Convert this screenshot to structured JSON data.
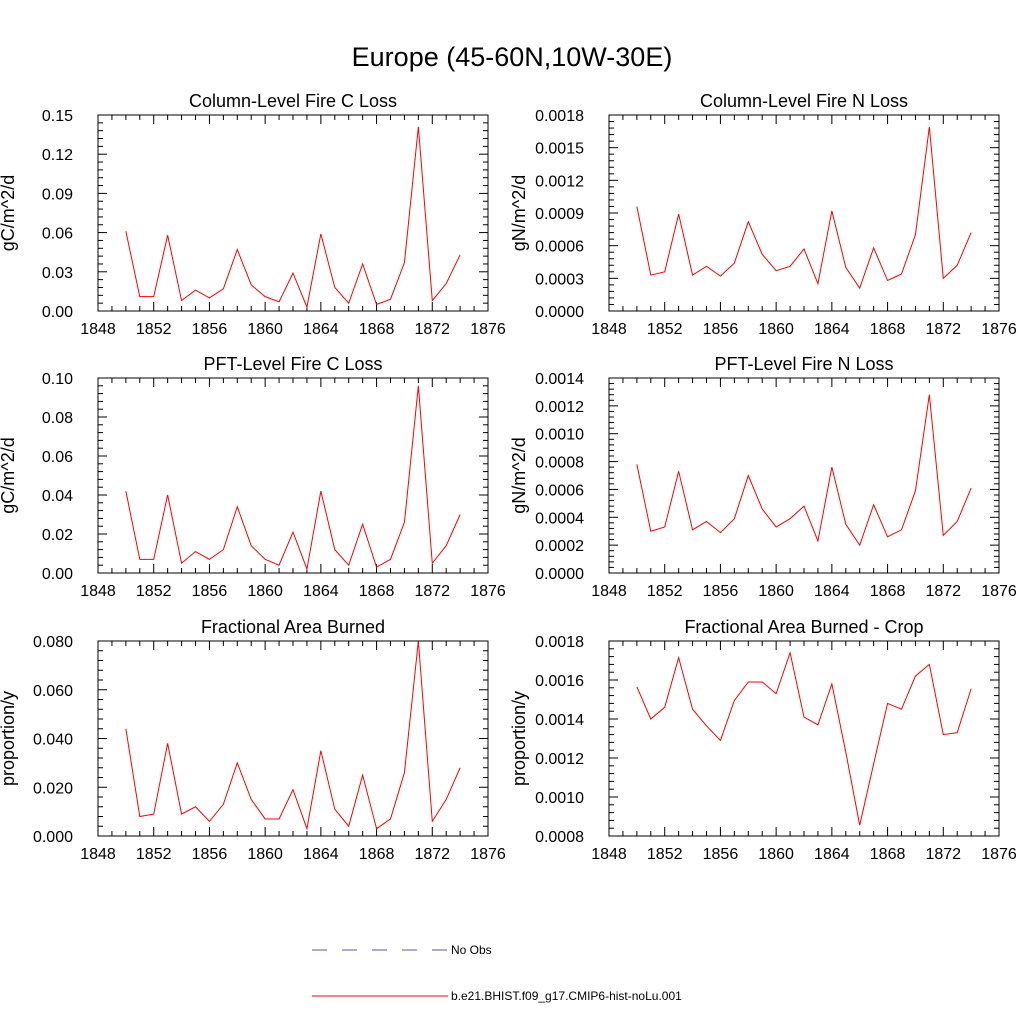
{
  "title": "Europe (45-60N,10W-30E)",
  "colors": {
    "model": "#ff0000",
    "obs": "#5a5aa0",
    "axis": "#000000"
  },
  "legend": {
    "obs_label": "No Obs",
    "model_label": "b.e21.BHIST.f09_g17.CMIP6-hist-noLu.001"
  },
  "chart_data": [
    {
      "type": "line",
      "title": "Column-Level Fire C Loss",
      "ylabel": "gC/m^2/d",
      "xlim": [
        1848,
        1876
      ],
      "ylim": [
        0,
        0.15
      ],
      "xticks": [
        "1848",
        "1852",
        "1856",
        "1860",
        "1864",
        "1868",
        "1872",
        "1876"
      ],
      "yticks": [
        "0.00",
        "0.03",
        "0.06",
        "0.09",
        "0.12",
        "0.15"
      ],
      "x": [
        1850,
        1851,
        1852,
        1853,
        1854,
        1855,
        1856,
        1857,
        1858,
        1859,
        1860,
        1861,
        1862,
        1863,
        1864,
        1865,
        1866,
        1867,
        1868,
        1869,
        1870,
        1871,
        1872,
        1873,
        1874
      ],
      "series": [
        {
          "values": [
            0.061,
            0.011,
            0.011,
            0.058,
            0.008,
            0.016,
            0.01,
            0.017,
            0.047,
            0.02,
            0.011,
            0.007,
            0.029,
            0.003,
            0.059,
            0.018,
            0.006,
            0.036,
            0.005,
            0.009,
            0.037,
            0.141,
            0.008,
            0.021,
            0.043
          ]
        }
      ]
    },
    {
      "type": "line",
      "title": "Column-Level Fire N Loss",
      "ylabel": "gN/m^2/d",
      "xlim": [
        1848,
        1876
      ],
      "ylim": [
        0,
        0.0018
      ],
      "xticks": [
        "1848",
        "1852",
        "1856",
        "1860",
        "1864",
        "1868",
        "1872",
        "1876"
      ],
      "yticks": [
        "0.0000",
        "0.0003",
        "0.0006",
        "0.0009",
        "0.0012",
        "0.0015",
        "0.0018"
      ],
      "x": [
        1850,
        1851,
        1852,
        1853,
        1854,
        1855,
        1856,
        1857,
        1858,
        1859,
        1860,
        1861,
        1862,
        1863,
        1864,
        1865,
        1866,
        1867,
        1868,
        1869,
        1870,
        1871,
        1872,
        1873,
        1874
      ],
      "series": [
        {
          "values": [
            0.00096,
            0.00033,
            0.00036,
            0.00089,
            0.00033,
            0.00041,
            0.00032,
            0.00044,
            0.00082,
            0.00052,
            0.00037,
            0.00041,
            0.00057,
            0.00025,
            0.00092,
            0.0004,
            0.00021,
            0.00058,
            0.00028,
            0.00034,
            0.0007,
            0.00169,
            0.0003,
            0.00042,
            0.00072
          ]
        }
      ]
    },
    {
      "type": "line",
      "title": "PFT-Level Fire C Loss",
      "ylabel": "gC/m^2/d",
      "xlim": [
        1848,
        1876
      ],
      "ylim": [
        0,
        0.1
      ],
      "xticks": [
        "1848",
        "1852",
        "1856",
        "1860",
        "1864",
        "1868",
        "1872",
        "1876"
      ],
      "yticks": [
        "0.00",
        "0.02",
        "0.04",
        "0.06",
        "0.08",
        "0.10"
      ],
      "x": [
        1850,
        1851,
        1852,
        1853,
        1854,
        1855,
        1856,
        1857,
        1858,
        1859,
        1860,
        1861,
        1862,
        1863,
        1864,
        1865,
        1866,
        1867,
        1868,
        1869,
        1870,
        1871,
        1872,
        1873,
        1874
      ],
      "series": [
        {
          "values": [
            0.042,
            0.007,
            0.007,
            0.04,
            0.005,
            0.011,
            0.007,
            0.012,
            0.034,
            0.014,
            0.007,
            0.004,
            0.021,
            0.002,
            0.042,
            0.012,
            0.004,
            0.025,
            0.003,
            0.007,
            0.026,
            0.096,
            0.005,
            0.014,
            0.03
          ]
        }
      ]
    },
    {
      "type": "line",
      "title": "PFT-Level Fire N Loss",
      "ylabel": "gN/m^2/d",
      "xlim": [
        1848,
        1876
      ],
      "ylim": [
        0,
        0.0014
      ],
      "xticks": [
        "1848",
        "1852",
        "1856",
        "1860",
        "1864",
        "1868",
        "1872",
        "1876"
      ],
      "yticks": [
        "0.0000",
        "0.0002",
        "0.0004",
        "0.0006",
        "0.0008",
        "0.0010",
        "0.0012",
        "0.0014"
      ],
      "x": [
        1850,
        1851,
        1852,
        1853,
        1854,
        1855,
        1856,
        1857,
        1858,
        1859,
        1860,
        1861,
        1862,
        1863,
        1864,
        1865,
        1866,
        1867,
        1868,
        1869,
        1870,
        1871,
        1872,
        1873,
        1874
      ],
      "series": [
        {
          "values": [
            0.00078,
            0.0003,
            0.00033,
            0.00073,
            0.00031,
            0.00037,
            0.00029,
            0.00039,
            0.0007,
            0.00046,
            0.00033,
            0.00039,
            0.00048,
            0.00023,
            0.00076,
            0.00035,
            0.0002,
            0.00049,
            0.00026,
            0.00031,
            0.00059,
            0.00128,
            0.00027,
            0.00037,
            0.00061
          ]
        }
      ]
    },
    {
      "type": "line",
      "title": "Fractional Area Burned",
      "ylabel": "proportion/y",
      "xlim": [
        1848,
        1876
      ],
      "ylim": [
        0,
        0.08
      ],
      "xticks": [
        "1848",
        "1852",
        "1856",
        "1860",
        "1864",
        "1868",
        "1872",
        "1876"
      ],
      "yticks": [
        "0.000",
        "0.020",
        "0.040",
        "0.060",
        "0.080"
      ],
      "x": [
        1850,
        1851,
        1852,
        1853,
        1854,
        1855,
        1856,
        1857,
        1858,
        1859,
        1860,
        1861,
        1862,
        1863,
        1864,
        1865,
        1866,
        1867,
        1868,
        1869,
        1870,
        1871,
        1872,
        1873,
        1874
      ],
      "series": [
        {
          "values": [
            0.044,
            0.008,
            0.009,
            0.038,
            0.009,
            0.012,
            0.006,
            0.013,
            0.03,
            0.015,
            0.007,
            0.007,
            0.019,
            0.003,
            0.035,
            0.011,
            0.004,
            0.025,
            0.003,
            0.007,
            0.026,
            0.08,
            0.006,
            0.015,
            0.028
          ]
        }
      ]
    },
    {
      "type": "line",
      "title": "Fractional Area Burned - Crop",
      "ylabel": "proportion/y",
      "xlim": [
        1848,
        1876
      ],
      "ylim": [
        0.0008,
        0.0018
      ],
      "xticks": [
        "1848",
        "1852",
        "1856",
        "1860",
        "1864",
        "1868",
        "1872",
        "1876"
      ],
      "yticks": [
        "0.0008",
        "0.0010",
        "0.0012",
        "0.0014",
        "0.0016",
        "0.0018"
      ],
      "x": [
        1850,
        1851,
        1852,
        1853,
        1854,
        1855,
        1856,
        1857,
        1858,
        1859,
        1860,
        1861,
        1862,
        1863,
        1864,
        1865,
        1866,
        1867,
        1868,
        1869,
        1870,
        1871,
        1872,
        1873,
        1874
      ],
      "series": [
        {
          "values": [
            0.001565,
            0.0014,
            0.00146,
            0.001715,
            0.00145,
            0.001365,
            0.00129,
            0.001495,
            0.00159,
            0.00159,
            0.00153,
            0.00174,
            0.00141,
            0.00137,
            0.00158,
            0.00123,
            0.000855,
            0.00117,
            0.00148,
            0.00145,
            0.00162,
            0.00168,
            0.00132,
            0.00133,
            0.001555
          ]
        }
      ]
    }
  ]
}
